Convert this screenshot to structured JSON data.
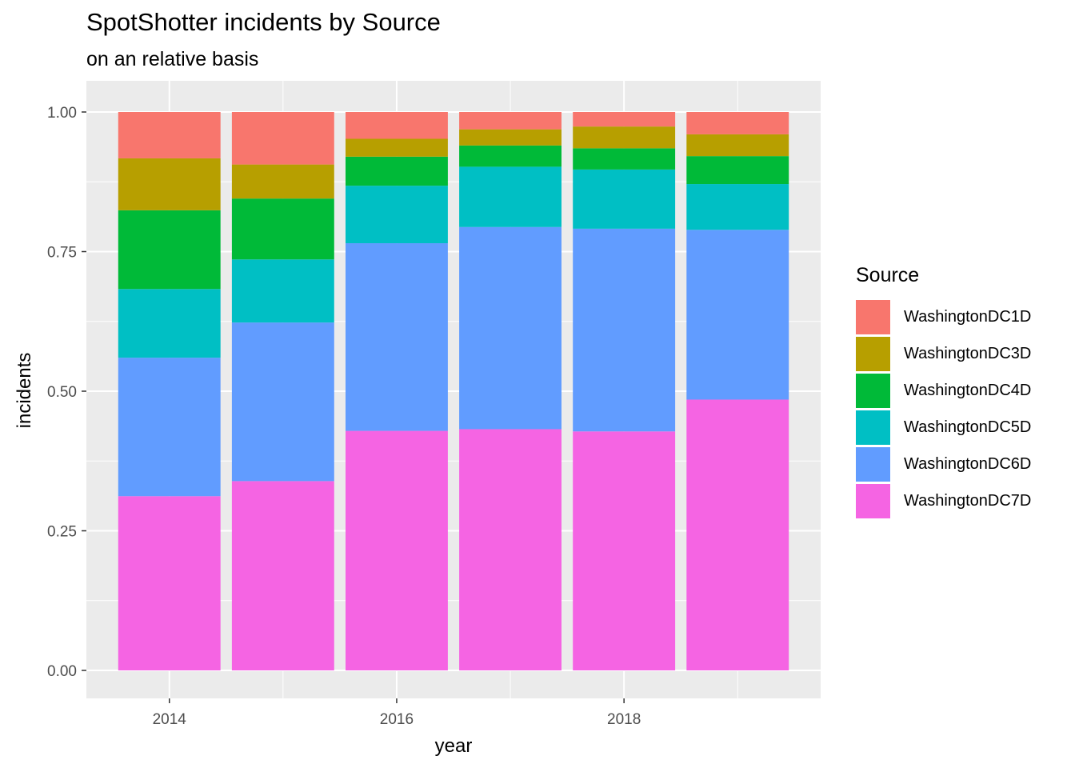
{
  "chart_data": {
    "type": "bar",
    "stacked": true,
    "title": "SpotShotter incidents by Source",
    "subtitle": "on an relative basis",
    "xlabel": "year",
    "ylabel": "incidents",
    "x": [
      2014,
      2015,
      2016,
      2017,
      2018,
      2019
    ],
    "x_ticks": [
      "2014",
      "2016",
      "2018"
    ],
    "y_ticks": [
      "0.00",
      "0.25",
      "0.50",
      "0.75",
      "1.00"
    ],
    "ylim": [
      0,
      1
    ],
    "grid": true,
    "legend_title": "Source",
    "legend_position": "right",
    "series": [
      {
        "name": "WashingtonDC7D",
        "color": "#F564E3",
        "values": [
          0.312,
          0.339,
          0.429,
          0.432,
          0.428,
          0.485
        ]
      },
      {
        "name": "WashingtonDC6D",
        "color": "#619CFF",
        "values": [
          0.248,
          0.284,
          0.336,
          0.362,
          0.363,
          0.304
        ]
      },
      {
        "name": "WashingtonDC5D",
        "color": "#00BFC4",
        "values": [
          0.123,
          0.113,
          0.103,
          0.108,
          0.106,
          0.082
        ]
      },
      {
        "name": "WashingtonDC4D",
        "color": "#00BA38",
        "values": [
          0.141,
          0.109,
          0.052,
          0.038,
          0.038,
          0.05
        ]
      },
      {
        "name": "WashingtonDC3D",
        "color": "#B79F00",
        "values": [
          0.093,
          0.061,
          0.032,
          0.029,
          0.039,
          0.039
        ]
      },
      {
        "name": "WashingtonDC1D",
        "color": "#F8766D",
        "values": [
          0.083,
          0.094,
          0.048,
          0.031,
          0.026,
          0.04
        ]
      }
    ],
    "legend_order": [
      "WashingtonDC1D",
      "WashingtonDC3D",
      "WashingtonDC4D",
      "WashingtonDC5D",
      "WashingtonDC6D",
      "WashingtonDC7D"
    ]
  }
}
